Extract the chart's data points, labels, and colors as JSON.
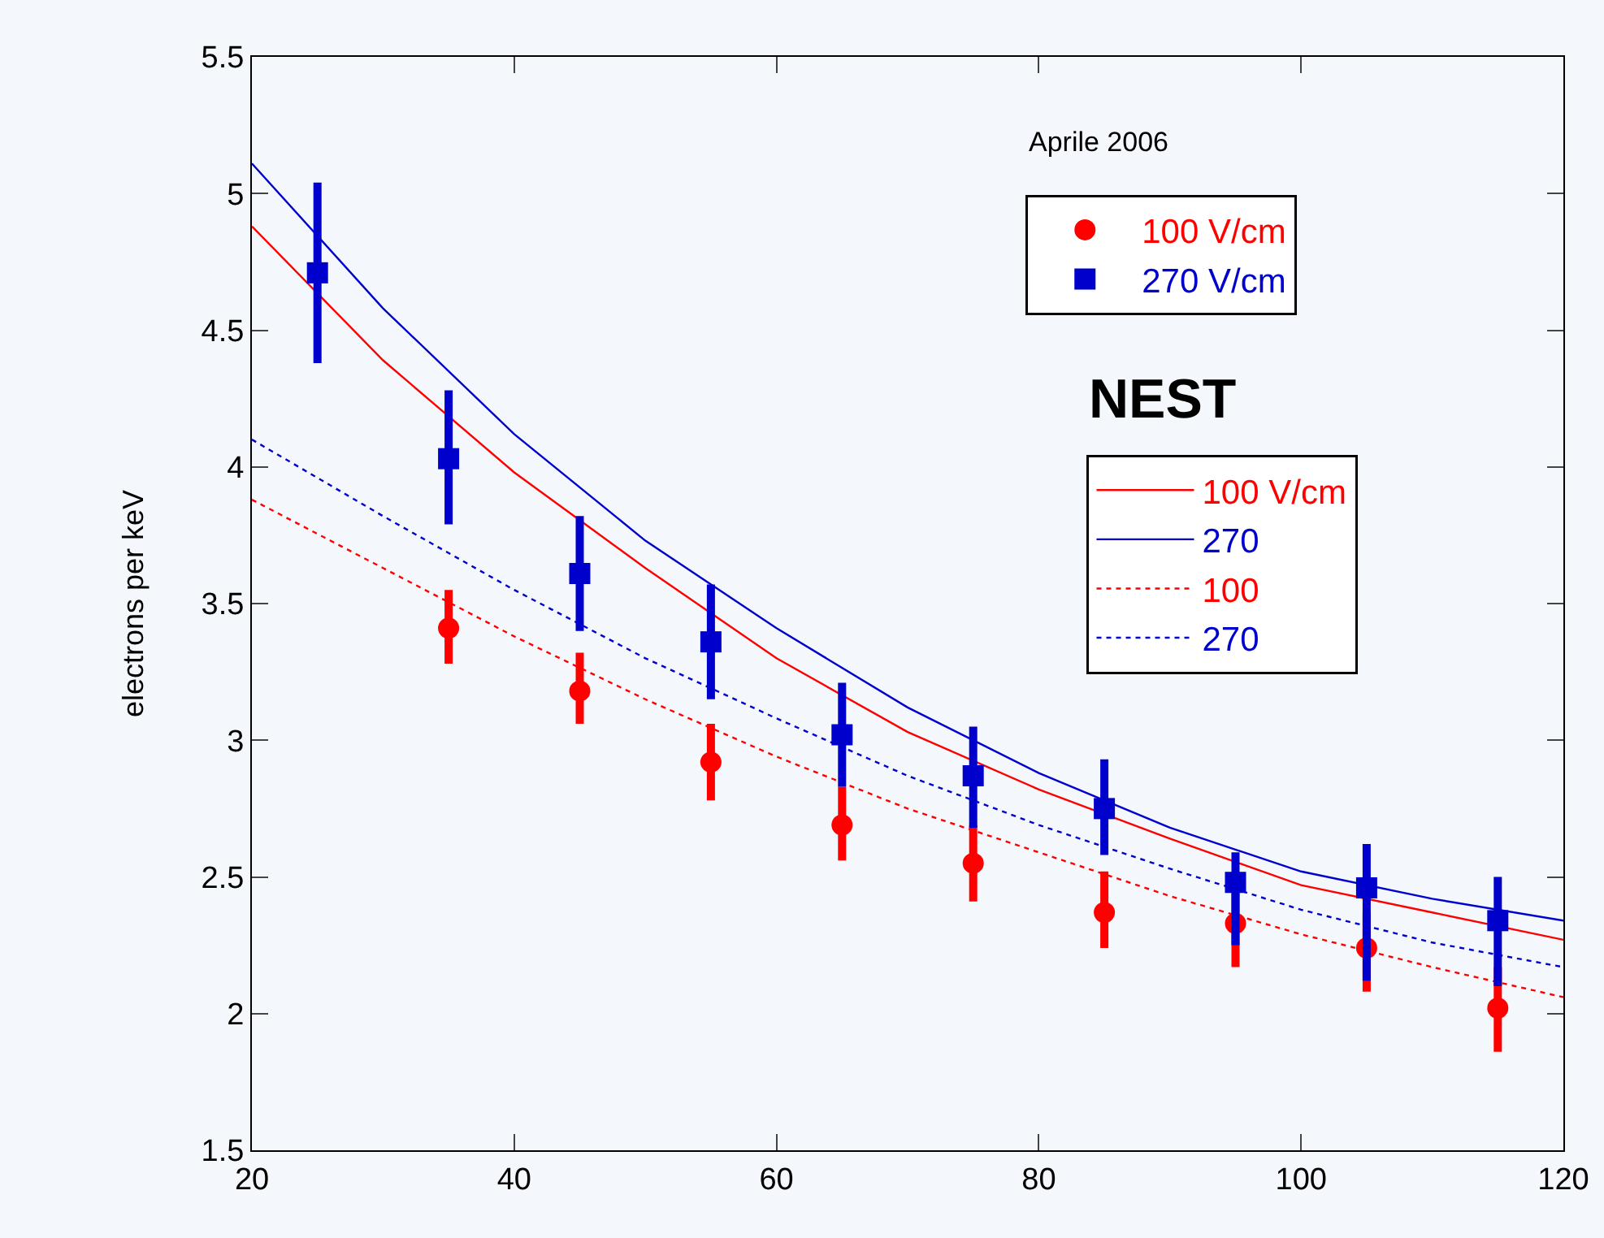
{
  "chart_data": {
    "type": "scatter",
    "ylabel": "electrons per keV",
    "xlim": [
      20,
      120
    ],
    "xticks": [
      20,
      40,
      60,
      80,
      100,
      120
    ],
    "ylim": [
      1.5,
      5.5
    ],
    "yticks": [
      1.5,
      2,
      2.5,
      3,
      3.5,
      4,
      4.5,
      5,
      5.5
    ],
    "grid": false,
    "legend": "top right",
    "annotations": [
      "Aprile 2006",
      "NEST"
    ],
    "series": [
      {
        "name": "100 V/cm",
        "marker": "circle",
        "color": "#ff0000",
        "x": [
          35,
          45,
          55,
          65,
          75,
          85,
          95,
          105,
          115
        ],
        "values": [
          3.41,
          3.18,
          2.92,
          2.69,
          2.55,
          2.37,
          2.33,
          2.24,
          2.02
        ],
        "errors": [
          [
            3.28,
            3.55
          ],
          [
            3.06,
            3.32
          ],
          [
            2.78,
            3.06
          ],
          [
            2.56,
            2.83
          ],
          [
            2.41,
            2.69
          ],
          [
            2.24,
            2.52
          ],
          [
            2.17,
            2.45
          ],
          [
            2.08,
            2.37
          ],
          [
            1.86,
            2.17
          ]
        ]
      },
      {
        "name": "270 V/cm",
        "marker": "square",
        "color": "#0000cc",
        "x": [
          25,
          35,
          45,
          55,
          65,
          75,
          85,
          95,
          105,
          115
        ],
        "values": [
          4.71,
          4.03,
          3.61,
          3.36,
          3.02,
          2.87,
          2.75,
          2.48,
          2.46,
          2.34
        ],
        "errors": [
          [
            4.38,
            5.04
          ],
          [
            3.79,
            4.28
          ],
          [
            3.4,
            3.82
          ],
          [
            3.15,
            3.57
          ],
          [
            2.83,
            3.21
          ],
          [
            2.68,
            3.05
          ],
          [
            2.58,
            2.93
          ],
          [
            2.25,
            2.59
          ],
          [
            2.12,
            2.62
          ],
          [
            2.1,
            2.5
          ]
        ]
      },
      {
        "name": "100 V/cm",
        "type": "line",
        "line_style": "solid",
        "color": "#ff0000",
        "x": [
          20,
          30,
          40,
          50,
          60,
          70,
          80,
          90,
          100,
          110,
          120
        ],
        "values": [
          4.88,
          4.39,
          3.98,
          3.63,
          3.3,
          3.03,
          2.82,
          2.64,
          2.47,
          2.37,
          2.27
        ]
      },
      {
        "name": "270",
        "type": "line",
        "line_style": "solid",
        "color": "#0000cc",
        "x": [
          20,
          30,
          40,
          50,
          60,
          70,
          80,
          90,
          100,
          110,
          120
        ],
        "values": [
          5.11,
          4.58,
          4.12,
          3.73,
          3.41,
          3.12,
          2.88,
          2.68,
          2.52,
          2.42,
          2.34
        ]
      },
      {
        "name": "100",
        "type": "line",
        "line_style": "dotted",
        "color": "#ff0000",
        "x": [
          20,
          30,
          40,
          50,
          60,
          70,
          80,
          90,
          100,
          110,
          120
        ],
        "values": [
          3.88,
          3.63,
          3.38,
          3.15,
          2.94,
          2.75,
          2.59,
          2.43,
          2.29,
          2.17,
          2.06
        ]
      },
      {
        "name": "270",
        "type": "line",
        "line_style": "dotted",
        "color": "#0000cc",
        "x": [
          20,
          30,
          40,
          50,
          60,
          70,
          80,
          90,
          100,
          110,
          120
        ],
        "values": [
          4.1,
          3.82,
          3.55,
          3.3,
          3.08,
          2.87,
          2.69,
          2.53,
          2.38,
          2.26,
          2.17
        ]
      }
    ]
  }
}
